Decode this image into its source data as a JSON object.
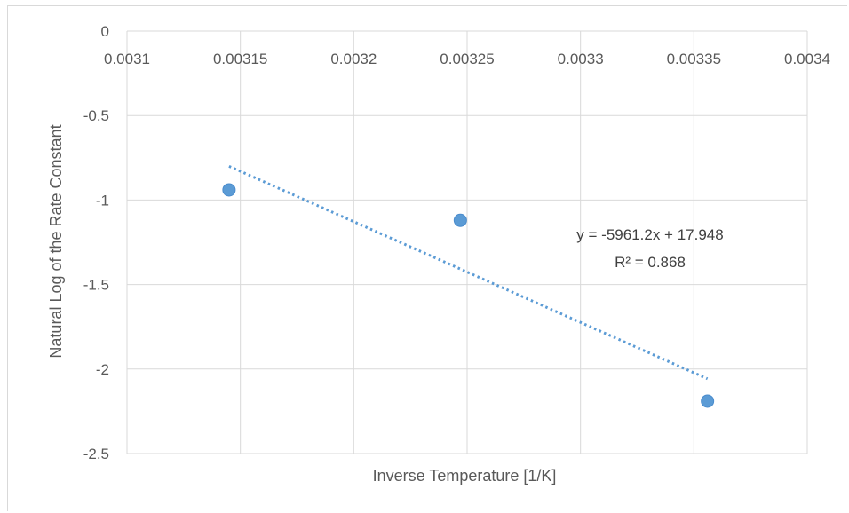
{
  "chart_data": {
    "type": "scatter",
    "title": "",
    "xlabel": "Inverse Temperature [1/K]",
    "ylabel": "Natural Log of the Rate Constant",
    "xlim": [
      0.0031,
      0.0034
    ],
    "ylim": [
      -2.5,
      0
    ],
    "x_ticks": [
      "0.0031",
      "0.00315",
      "0.0032",
      "0.00325",
      "0.0033",
      "0.00335",
      "0.0034"
    ],
    "y_ticks": [
      "0",
      "-0.5",
      "-1",
      "-1.5",
      "-2",
      "-2.5"
    ],
    "grid": true,
    "legend": "none",
    "series": [
      {
        "x": [
          0.003145,
          0.003247,
          0.003356
        ],
        "y": [
          -0.94,
          -1.12,
          -2.19
        ],
        "color": "#5b9bd5"
      }
    ],
    "trendline": {
      "type": "linear",
      "slope": -5961.2,
      "intercept": 17.948,
      "x_range": [
        0.003145,
        0.003356
      ],
      "style": "dotted",
      "color": "#5b9bd5",
      "equation_label": "y = -5961.2x + 17.948",
      "r2_label": "R² = 0.868"
    }
  }
}
